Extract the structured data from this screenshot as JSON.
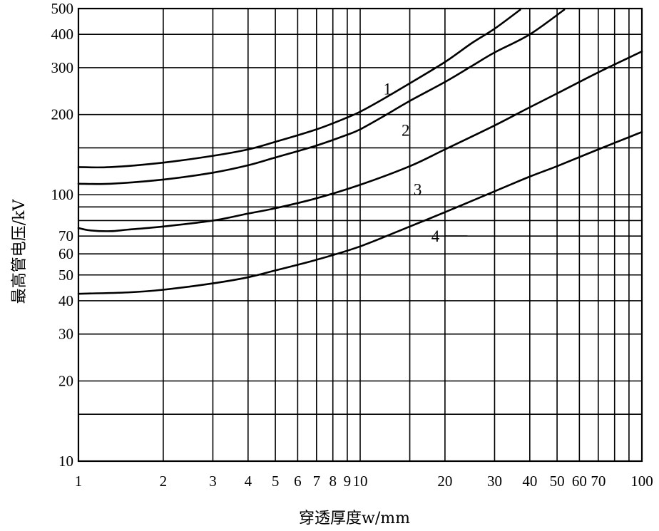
{
  "chart_data": {
    "type": "line",
    "title": "",
    "xlabel": "穿透厚度w/mm",
    "ylabel": "最高管电压/kV",
    "xscale": "log",
    "yscale": "log",
    "xlim": [
      1,
      100
    ],
    "ylim": [
      10,
      500
    ],
    "grid": true,
    "x_ticks": [
      {
        "value": 1,
        "label": "1"
      },
      {
        "value": 2,
        "label": "2"
      },
      {
        "value": 3,
        "label": "3"
      },
      {
        "value": 4,
        "label": "4"
      },
      {
        "value": 5,
        "label": "5"
      },
      {
        "value": 6,
        "label": "6"
      },
      {
        "value": 7,
        "label": "7"
      },
      {
        "value": 8,
        "label": "8"
      },
      {
        "value": 9,
        "label": "9"
      },
      {
        "value": 10,
        "label": "10"
      },
      {
        "value": 20,
        "label": "20"
      },
      {
        "value": 30,
        "label": "30"
      },
      {
        "value": 40,
        "label": "40"
      },
      {
        "value": 50,
        "label": "50"
      },
      {
        "value": 60,
        "label": "60"
      },
      {
        "value": 70,
        "label": "70"
      },
      {
        "value": 100,
        "label": "100"
      }
    ],
    "x_minor_grid": [
      15,
      80,
      90
    ],
    "y_ticks": [
      {
        "value": 10,
        "label": "10"
      },
      {
        "value": 20,
        "label": "20"
      },
      {
        "value": 30,
        "label": "30"
      },
      {
        "value": 40,
        "label": "40"
      },
      {
        "value": 50,
        "label": "50"
      },
      {
        "value": 60,
        "label": "60"
      },
      {
        "value": 70,
        "label": "70"
      },
      {
        "value": 100,
        "label": "100"
      },
      {
        "value": 200,
        "label": "200"
      },
      {
        "value": 300,
        "label": "300"
      },
      {
        "value": 400,
        "label": "400"
      },
      {
        "value": 500,
        "label": "500"
      }
    ],
    "y_minor_grid": [
      15,
      80,
      90,
      150
    ],
    "series": [
      {
        "label": "1",
        "label_at": [
          12.5,
          250
        ],
        "points": [
          [
            1,
            127
          ],
          [
            1.3,
            127
          ],
          [
            2,
            132
          ],
          [
            3,
            140
          ],
          [
            4,
            148
          ],
          [
            5,
            158
          ],
          [
            7,
            176
          ],
          [
            9,
            195
          ],
          [
            10,
            205
          ],
          [
            12,
            228
          ],
          [
            15,
            262
          ],
          [
            20,
            315
          ],
          [
            25,
            372
          ],
          [
            30,
            420
          ],
          [
            37,
            495
          ]
        ]
      },
      {
        "label": "2",
        "label_at": [
          14.5,
          175
        ],
        "points": [
          [
            1,
            110
          ],
          [
            1.3,
            110
          ],
          [
            2,
            114
          ],
          [
            3,
            121
          ],
          [
            4,
            129
          ],
          [
            5,
            138
          ],
          [
            7,
            153
          ],
          [
            9,
            168
          ],
          [
            10,
            176
          ],
          [
            12,
            196
          ],
          [
            15,
            225
          ],
          [
            20,
            265
          ],
          [
            25,
            305
          ],
          [
            30,
            342
          ],
          [
            40,
            400
          ],
          [
            53,
            495
          ]
        ]
      },
      {
        "label": "3",
        "label_at": [
          16,
          105
        ],
        "points": [
          [
            1,
            75
          ],
          [
            1.1,
            73.5
          ],
          [
            1.3,
            73
          ],
          [
            1.5,
            74
          ],
          [
            2,
            76
          ],
          [
            3,
            80
          ],
          [
            4,
            85
          ],
          [
            5,
            89
          ],
          [
            7,
            97
          ],
          [
            10,
            109
          ],
          [
            15,
            128
          ],
          [
            20,
            148
          ],
          [
            30,
            182
          ],
          [
            40,
            213
          ],
          [
            50,
            240
          ],
          [
            70,
            288
          ],
          [
            100,
            345
          ]
        ]
      },
      {
        "label": "4",
        "label_at": [
          18.5,
          70
        ],
        "points": [
          [
            1,
            42.5
          ],
          [
            1.5,
            43
          ],
          [
            2,
            44
          ],
          [
            3,
            46.5
          ],
          [
            4,
            49
          ],
          [
            5,
            52
          ],
          [
            7,
            57
          ],
          [
            10,
            64
          ],
          [
            15,
            76
          ],
          [
            20,
            86
          ],
          [
            30,
            103
          ],
          [
            40,
            117
          ],
          [
            50,
            128
          ],
          [
            70,
            148
          ],
          [
            100,
            172
          ]
        ]
      }
    ],
    "annotations": [
      {
        "type": "leader",
        "series": "4",
        "from": [
          20,
          70
        ],
        "to": [
          24,
          70
        ]
      }
    ]
  }
}
